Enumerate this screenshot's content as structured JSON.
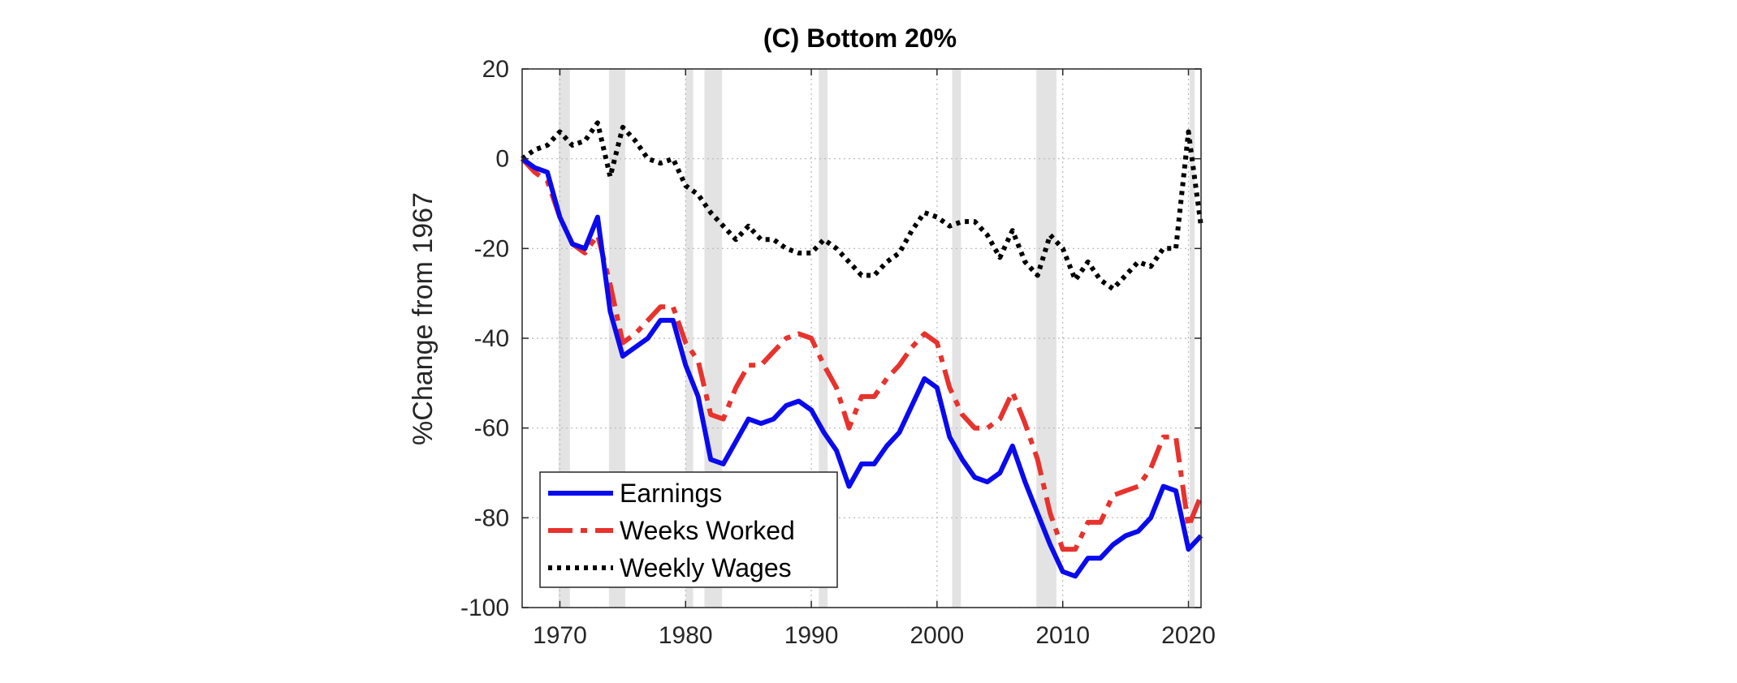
{
  "chart_data": {
    "type": "line",
    "title": "(C) Bottom 20%",
    "xlabel": "",
    "ylabel": "%Change from 1967",
    "xlim": [
      1967,
      2021
    ],
    "ylim": [
      -100,
      20
    ],
    "xticks": [
      1970,
      1980,
      1990,
      2000,
      2010,
      2020
    ],
    "yticks": [
      20,
      0,
      -20,
      -40,
      -60,
      -80,
      -100
    ],
    "grid": "dotted",
    "legend_position": "bottom-left",
    "recession_bands": [
      [
        1969.9,
        1970.8
      ],
      [
        1973.9,
        1975.2
      ],
      [
        1980.0,
        1980.6
      ],
      [
        1981.5,
        1982.9
      ],
      [
        1990.6,
        1991.3
      ],
      [
        2001.2,
        2001.9
      ],
      [
        2007.9,
        2009.5
      ],
      [
        2020.1,
        2020.5
      ]
    ],
    "colors": {
      "earnings": "#0a0aef",
      "weeks_worked": "#e8322d",
      "weekly_wages": "#000000",
      "recession": "#e3e3e3"
    },
    "x": [
      1967,
      1968,
      1969,
      1970,
      1971,
      1972,
      1973,
      1974,
      1975,
      1976,
      1977,
      1978,
      1979,
      1980,
      1981,
      1982,
      1983,
      1984,
      1985,
      1986,
      1987,
      1988,
      1989,
      1990,
      1991,
      1992,
      1993,
      1994,
      1995,
      1996,
      1997,
      1998,
      1999,
      2000,
      2001,
      2002,
      2003,
      2004,
      2005,
      2006,
      2007,
      2008,
      2009,
      2010,
      2011,
      2012,
      2013,
      2014,
      2015,
      2016,
      2017,
      2018,
      2019,
      2020,
      2021
    ],
    "series": [
      {
        "name": "Earnings",
        "key": "earnings",
        "style": "solid",
        "values": [
          0,
          -2,
          -3,
          -13,
          -19,
          -20,
          -13,
          -34,
          -44,
          -42,
          -40,
          -36,
          -36,
          -46,
          -53,
          -67,
          -68,
          -63,
          -58,
          -59,
          -58,
          -55,
          -54,
          -56,
          -61,
          -65,
          -73,
          -68,
          -68,
          -64,
          -61,
          -55,
          -49,
          -51,
          -62,
          -67,
          -71,
          -72,
          -70,
          -64,
          -72,
          -79,
          -86,
          -92,
          -93,
          -89,
          -89,
          -86,
          -84,
          -83,
          -80,
          -73,
          -74,
          -87,
          -84
        ]
      },
      {
        "name": "Weeks Worked",
        "key": "weeks_worked",
        "style": "dashdot",
        "values": [
          0,
          -3,
          -5,
          -13,
          -19,
          -21,
          -17,
          -28,
          -41,
          -39,
          -36,
          -33,
          -33,
          -41,
          -45,
          -57,
          -58,
          -51,
          -46,
          -46,
          -43,
          -40,
          -39,
          -40,
          -46,
          -51,
          -60,
          -53,
          -53,
          -49,
          -46,
          -42,
          -39,
          -41,
          -51,
          -57,
          -60,
          -60,
          -58,
          -52,
          -59,
          -67,
          -79,
          -87,
          -87,
          -81,
          -81,
          -75,
          -74,
          -73,
          -69,
          -62,
          -62,
          -82,
          -75
        ]
      },
      {
        "name": "Weekly Wages",
        "key": "weekly_wages",
        "style": "dotted",
        "values": [
          0,
          2,
          3,
          6,
          3,
          4,
          8,
          -4,
          7,
          4,
          0,
          -1,
          0,
          -6,
          -8,
          -12,
          -15,
          -18,
          -15,
          -18,
          -18,
          -20,
          -21,
          -21,
          -18,
          -20,
          -23,
          -26,
          -26,
          -23,
          -21,
          -16,
          -12,
          -13,
          -15,
          -14,
          -14,
          -17,
          -22,
          -16,
          -23,
          -26,
          -17,
          -20,
          -27,
          -23,
          -27,
          -29,
          -26,
          -23,
          -24,
          -20,
          -20,
          6,
          -15
        ]
      }
    ]
  }
}
